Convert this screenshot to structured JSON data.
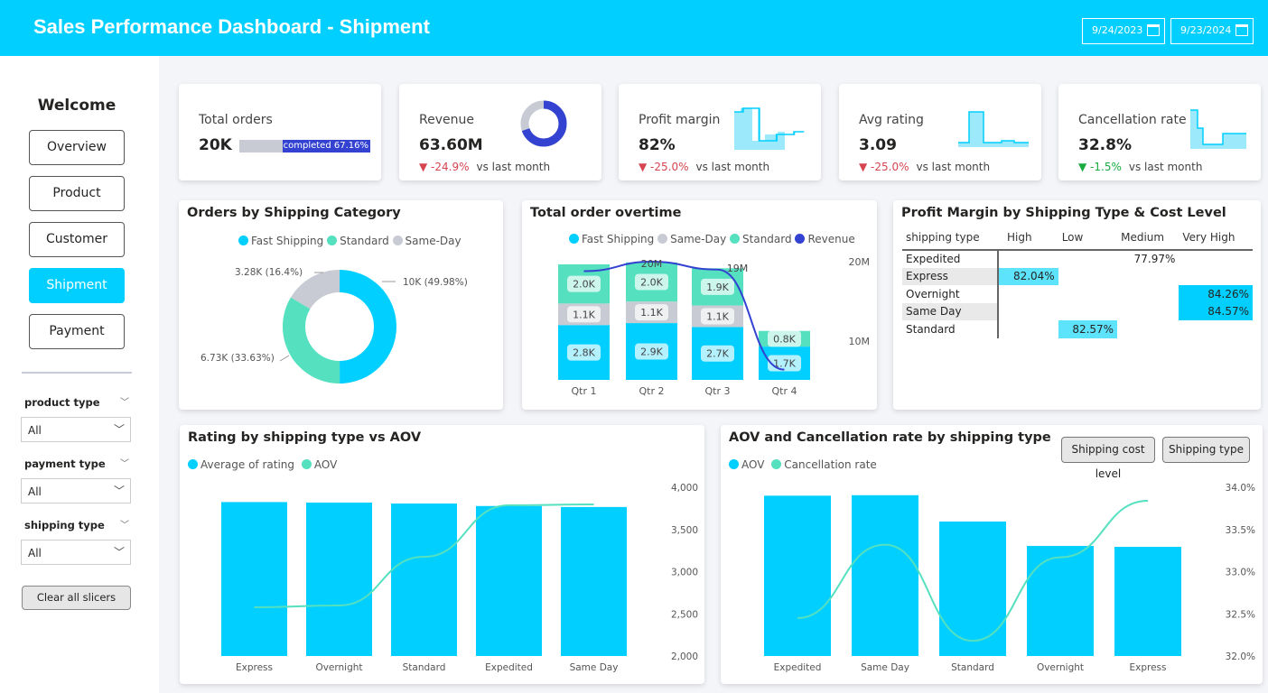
{
  "header": {
    "title": "Sales Performance Dashboard - Shipment",
    "start_date": "9/24/2023",
    "end_date": "9/23/2024"
  },
  "sidebar": {
    "welcome": "Welcome",
    "nav": [
      {
        "label": "Overview"
      },
      {
        "label": "Product"
      },
      {
        "label": "Customer"
      },
      {
        "label": "Shipment",
        "active": true
      },
      {
        "label": "Payment"
      }
    ],
    "filters": [
      {
        "label": "product type",
        "value": "All"
      },
      {
        "label": "payment type",
        "value": "All"
      },
      {
        "label": "shipping type",
        "value": "All"
      }
    ],
    "clear_label": "Clear all slicers"
  },
  "colors": {
    "accent": "#00cfff",
    "green": "#55e0c0",
    "gray": "#c8cbd3",
    "navy": "#3342d1",
    "negative": "#d64550",
    "positive": "#1aab40"
  },
  "kpis": {
    "total_orders": {
      "label": "Total orders",
      "value": "20K",
      "bar_label": "completed",
      "bar_pct": "67.16%",
      "completed_fraction": 0.6716
    },
    "revenue": {
      "label": "Revenue",
      "value": "63.60M",
      "delta": "▼ -24.9%",
      "vs": "vs last month"
    },
    "profit_margin": {
      "label": "Profit margin",
      "value": "82%",
      "delta": "▼ -25.0%",
      "vs": "vs last month"
    },
    "avg_rating": {
      "label": "Avg rating",
      "value": "3.09",
      "delta": "▼ -25.0%",
      "vs": "vs last month"
    },
    "cancellation": {
      "label": "Cancellation rate",
      "value": "32.8%",
      "delta": "▼ -1.5%",
      "vs": "vs last month"
    }
  },
  "chart_data": [
    {
      "type": "pie",
      "title": "Orders by Shipping Category",
      "legend": [
        "Fast Shipping",
        "Standard",
        "Same-Day"
      ],
      "slices": [
        {
          "name": "Fast Shipping",
          "value": 10000,
          "label": "10K (49.98%)",
          "pct": 49.98
        },
        {
          "name": "Standard",
          "value": 6730,
          "label": "6.73K (33.63%)",
          "pct": 33.63
        },
        {
          "name": "Same-Day",
          "value": 3280,
          "label": "3.28K (16.4%)",
          "pct": 16.4
        }
      ]
    },
    {
      "type": "bar",
      "stacked": true,
      "title": "Total order overtime",
      "categories": [
        "Qtr 1",
        "Qtr 2",
        "Qtr 3",
        "Qtr 4"
      ],
      "series": [
        {
          "name": "Fast Shipping",
          "values": [
            2.8,
            2.9,
            2.7,
            1.7
          ],
          "labels": [
            "2.8K",
            "2.9K",
            "2.7K",
            "1.7K"
          ]
        },
        {
          "name": "Same-Day",
          "values": [
            1.1,
            1.1,
            1.1,
            0
          ],
          "labels": [
            "1.1K",
            "1.1K",
            "1.1K",
            ""
          ]
        },
        {
          "name": "Standard",
          "values": [
            2.0,
            2.0,
            1.9,
            0.8
          ],
          "labels": [
            "2.0K",
            "2.0K",
            "1.9K",
            "0.8K"
          ]
        }
      ],
      "line": {
        "name": "Revenue",
        "values": [
          18.8,
          20,
          19,
          6.4
        ],
        "labels": [
          "",
          "20M",
          "19M",
          ""
        ]
      },
      "y2_ticks": [
        "20M",
        "10M"
      ]
    },
    {
      "type": "table",
      "title": "Profit Margin by Shipping Type & Cost Level",
      "columns": [
        "shipping type",
        "High",
        "Low",
        "Medium",
        "Very High"
      ],
      "rows": [
        [
          "Expedited",
          "",
          "",
          "77.97%",
          ""
        ],
        [
          "Express",
          "82.04%",
          "",
          "",
          ""
        ],
        [
          "Overnight",
          "",
          "",
          "",
          "84.26%"
        ],
        [
          "Same Day",
          "",
          "",
          "",
          "84.57%"
        ],
        [
          "Standard",
          "",
          "82.57%",
          "",
          ""
        ]
      ]
    },
    {
      "type": "bar",
      "title": "Rating by shipping type vs AOV",
      "categories": [
        "Express",
        "Overnight",
        "Standard",
        "Expedited",
        "Same Day"
      ],
      "series": [
        {
          "name": "Average of rating",
          "values": [
            3.12,
            3.11,
            3.09,
            3.04,
            3.02
          ]
        }
      ],
      "line": {
        "name": "AOV",
        "values": [
          2577,
          2599,
          3176,
          3786,
          3797
        ]
      },
      "y2_ticks": [
        "4,000",
        "3,500",
        "3,000",
        "2,500",
        "2,000"
      ],
      "y2lim": [
        2000,
        4000
      ]
    },
    {
      "type": "bar",
      "title": "AOV and Cancellation rate by shipping type",
      "categories": [
        "Expedited",
        "Same Day",
        "Standard",
        "Overnight",
        "Express"
      ],
      "series": [
        {
          "name": "AOV",
          "values": [
            3786,
            3797,
            3176,
            2599,
            2577
          ]
        }
      ],
      "line": {
        "name": "Cancellation rate",
        "values": [
          32.45,
          33.32,
          32.18,
          33.17,
          33.84
        ]
      },
      "y2_ticks": [
        "34.0%",
        "33.5%",
        "33.0%",
        "32.5%",
        "32.0%"
      ],
      "y2lim": [
        32,
        34
      ],
      "buttons": [
        "Shipping cost level",
        "Shipping type"
      ]
    }
  ]
}
